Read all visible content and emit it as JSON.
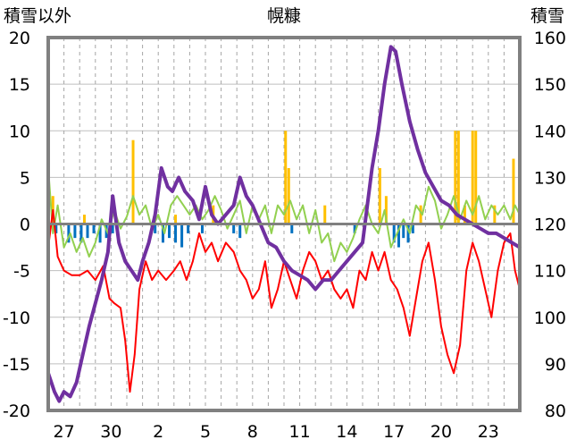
{
  "chart_data": {
    "type": "line",
    "title": "幌糠",
    "left_axis": {
      "label": "積雪以外",
      "ylim": [
        -20,
        20
      ],
      "ticks": [
        20,
        15,
        10,
        5,
        0,
        -5,
        -10,
        -15,
        -20
      ],
      "tick_labels": [
        "20",
        "15",
        "10",
        "5",
        "0",
        "-5",
        "-10",
        "-15",
        "-20"
      ]
    },
    "right_axis": {
      "label": "積雪",
      "ylim": [
        80,
        160
      ],
      "ticks": [
        160,
        150,
        140,
        130,
        120,
        110,
        100,
        90,
        80
      ],
      "tick_labels": [
        "160",
        "150",
        "140",
        "130",
        "120",
        "110",
        "100",
        "90",
        "80"
      ]
    },
    "x_axis": {
      "range_days": [
        0,
        30
      ],
      "tick_positions": [
        1,
        4,
        7,
        10,
        13,
        16,
        19,
        22,
        25,
        28
      ],
      "tick_labels": [
        "27",
        "30",
        "2",
        "5",
        "8",
        "11",
        "14",
        "17",
        "20",
        "23"
      ]
    },
    "grid": {
      "horizontal": true,
      "vertical_dashed": true
    },
    "series": [
      {
        "role": "snow_depth",
        "axis": "right",
        "color": "#7030A0",
        "points": [
          [
            0,
            88
          ],
          [
            0.4,
            84
          ],
          [
            0.7,
            82
          ],
          [
            1.0,
            84
          ],
          [
            1.4,
            83
          ],
          [
            1.8,
            86
          ],
          [
            2.2,
            92
          ],
          [
            2.6,
            98
          ],
          [
            3.0,
            103
          ],
          [
            3.4,
            108
          ],
          [
            3.8,
            114
          ],
          [
            4.1,
            126
          ],
          [
            4.5,
            116
          ],
          [
            4.9,
            112
          ],
          [
            5.3,
            110
          ],
          [
            5.7,
            108
          ],
          [
            6.0,
            112
          ],
          [
            6.4,
            116
          ],
          [
            6.8,
            122
          ],
          [
            7.2,
            132
          ],
          [
            7.6,
            128
          ],
          [
            7.9,
            127
          ],
          [
            8.3,
            130
          ],
          [
            8.7,
            127
          ],
          [
            9.2,
            125
          ],
          [
            9.6,
            121
          ],
          [
            10.0,
            128
          ],
          [
            10.4,
            122
          ],
          [
            10.8,
            120
          ],
          [
            11.3,
            122
          ],
          [
            11.8,
            124
          ],
          [
            12.2,
            130
          ],
          [
            12.6,
            126
          ],
          [
            13.0,
            124
          ],
          [
            13.5,
            120
          ],
          [
            14.0,
            116
          ],
          [
            14.5,
            115
          ],
          [
            15.0,
            112
          ],
          [
            15.5,
            110
          ],
          [
            16.0,
            109
          ],
          [
            16.5,
            108
          ],
          [
            17.0,
            106
          ],
          [
            17.5,
            108
          ],
          [
            18.0,
            108
          ],
          [
            18.5,
            110
          ],
          [
            19.0,
            112
          ],
          [
            19.5,
            114
          ],
          [
            20.0,
            116
          ],
          [
            20.6,
            132
          ],
          [
            21.0,
            140
          ],
          [
            21.4,
            150
          ],
          [
            21.8,
            158
          ],
          [
            22.1,
            157
          ],
          [
            22.5,
            150
          ],
          [
            23.0,
            142
          ],
          [
            23.5,
            136
          ],
          [
            24.0,
            131
          ],
          [
            24.5,
            128
          ],
          [
            25.0,
            125
          ],
          [
            25.5,
            124
          ],
          [
            26.0,
            122
          ],
          [
            26.5,
            121
          ],
          [
            27.0,
            120
          ],
          [
            27.5,
            119
          ],
          [
            28.0,
            118
          ],
          [
            28.5,
            118
          ],
          [
            29.0,
            117
          ],
          [
            29.5,
            116
          ],
          [
            30.0,
            115
          ]
        ]
      },
      {
        "role": "temperature_red",
        "axis": "left",
        "color": "#FF0000",
        "points": [
          [
            0,
            -2.5
          ],
          [
            0.3,
            1.5
          ],
          [
            0.6,
            -3.5
          ],
          [
            1.0,
            -5
          ],
          [
            1.5,
            -5.5
          ],
          [
            2.0,
            -5.5
          ],
          [
            2.5,
            -5
          ],
          [
            3.0,
            -6
          ],
          [
            3.5,
            -4.5
          ],
          [
            3.9,
            -8
          ],
          [
            4.2,
            -8.5
          ],
          [
            4.6,
            -9
          ],
          [
            4.9,
            -12.5
          ],
          [
            5.2,
            -18
          ],
          [
            5.5,
            -14
          ],
          [
            5.8,
            -7
          ],
          [
            6.2,
            -4
          ],
          [
            6.6,
            -6
          ],
          [
            7.0,
            -5
          ],
          [
            7.5,
            -6
          ],
          [
            8.0,
            -5
          ],
          [
            8.4,
            -4
          ],
          [
            8.8,
            -6
          ],
          [
            9.2,
            -4
          ],
          [
            9.6,
            -1
          ],
          [
            10.0,
            -3
          ],
          [
            10.4,
            -2
          ],
          [
            10.8,
            -4
          ],
          [
            11.3,
            -2
          ],
          [
            11.8,
            -3
          ],
          [
            12.2,
            -5
          ],
          [
            12.6,
            -6
          ],
          [
            13.0,
            -8
          ],
          [
            13.4,
            -7
          ],
          [
            13.8,
            -4
          ],
          [
            14.2,
            -9
          ],
          [
            14.6,
            -7
          ],
          [
            15.0,
            -4
          ],
          [
            15.4,
            -6
          ],
          [
            15.8,
            -8
          ],
          [
            16.2,
            -5
          ],
          [
            16.6,
            -3
          ],
          [
            17.0,
            -4
          ],
          [
            17.4,
            -6
          ],
          [
            17.8,
            -5
          ],
          [
            18.2,
            -7
          ],
          [
            18.6,
            -8
          ],
          [
            19.0,
            -7
          ],
          [
            19.4,
            -9
          ],
          [
            19.8,
            -5
          ],
          [
            20.2,
            -6
          ],
          [
            20.6,
            -3
          ],
          [
            21.0,
            -5
          ],
          [
            21.4,
            -3
          ],
          [
            21.8,
            -6
          ],
          [
            22.2,
            -7
          ],
          [
            22.6,
            -9
          ],
          [
            23.0,
            -12
          ],
          [
            23.4,
            -8
          ],
          [
            23.8,
            -4
          ],
          [
            24.2,
            -2
          ],
          [
            24.6,
            -6
          ],
          [
            25.0,
            -11
          ],
          [
            25.4,
            -14
          ],
          [
            25.8,
            -16
          ],
          [
            26.2,
            -13
          ],
          [
            26.6,
            -5
          ],
          [
            27.0,
            -2
          ],
          [
            27.4,
            -4
          ],
          [
            27.8,
            -7
          ],
          [
            28.2,
            -10
          ],
          [
            28.6,
            -5
          ],
          [
            29.0,
            -2
          ],
          [
            29.4,
            -1
          ],
          [
            29.7,
            -5
          ],
          [
            30.0,
            -7
          ]
        ]
      },
      {
        "role": "temperature_green",
        "axis": "left",
        "color": "#92D050",
        "points": [
          [
            0,
            6
          ],
          [
            0.3,
            -1
          ],
          [
            0.6,
            2
          ],
          [
            1.0,
            -2.5
          ],
          [
            1.4,
            -1
          ],
          [
            1.8,
            -3
          ],
          [
            2.2,
            -1.5
          ],
          [
            2.6,
            -3.5
          ],
          [
            3.0,
            -2
          ],
          [
            3.4,
            0.5
          ],
          [
            3.8,
            -1
          ],
          [
            4.2,
            1.5
          ],
          [
            4.6,
            -0.5
          ],
          [
            5.0,
            0.8
          ],
          [
            5.4,
            3
          ],
          [
            5.8,
            1
          ],
          [
            6.2,
            2
          ],
          [
            6.6,
            -0.5
          ],
          [
            7.0,
            1
          ],
          [
            7.4,
            -1
          ],
          [
            7.8,
            2
          ],
          [
            8.2,
            3
          ],
          [
            8.6,
            2
          ],
          [
            9.0,
            1
          ],
          [
            9.4,
            2
          ],
          [
            9.8,
            0.5
          ],
          [
            10.2,
            1.5
          ],
          [
            10.6,
            3
          ],
          [
            11.0,
            1.5
          ],
          [
            11.4,
            -0.5
          ],
          [
            11.8,
            1
          ],
          [
            12.2,
            2.5
          ],
          [
            12.6,
            -1
          ],
          [
            13.0,
            2
          ],
          [
            13.4,
            0.5
          ],
          [
            13.8,
            2
          ],
          [
            14.2,
            -1
          ],
          [
            14.6,
            2
          ],
          [
            15.0,
            1
          ],
          [
            15.4,
            2.5
          ],
          [
            15.8,
            0.5
          ],
          [
            16.2,
            2
          ],
          [
            16.6,
            -1
          ],
          [
            17.0,
            1.5
          ],
          [
            17.4,
            -2
          ],
          [
            17.8,
            -1
          ],
          [
            18.2,
            -4
          ],
          [
            18.6,
            -2
          ],
          [
            19.0,
            -3
          ],
          [
            19.4,
            -1.5
          ],
          [
            19.8,
            0.5
          ],
          [
            20.2,
            2
          ],
          [
            20.6,
            0
          ],
          [
            21.0,
            -1
          ],
          [
            21.4,
            1.5
          ],
          [
            21.8,
            -2.5
          ],
          [
            22.2,
            -1
          ],
          [
            22.6,
            0.5
          ],
          [
            23.0,
            -1
          ],
          [
            23.4,
            2
          ],
          [
            23.8,
            1
          ],
          [
            24.2,
            4
          ],
          [
            24.6,
            2.5
          ],
          [
            25.0,
            -0.5
          ],
          [
            25.4,
            1
          ],
          [
            25.8,
            3
          ],
          [
            26.2,
            0.5
          ],
          [
            26.6,
            2.5
          ],
          [
            27.0,
            1
          ],
          [
            27.4,
            3
          ],
          [
            27.8,
            0.5
          ],
          [
            28.2,
            2
          ],
          [
            28.6,
            1
          ],
          [
            29.0,
            2
          ],
          [
            29.4,
            0.5
          ],
          [
            29.7,
            2
          ],
          [
            30.0,
            1
          ]
        ]
      },
      {
        "role": "bars_orange",
        "axis": "left",
        "type": "bar",
        "color": "#FFC000",
        "points": [
          [
            0.3,
            3
          ],
          [
            2.3,
            1
          ],
          [
            5.4,
            9
          ],
          [
            8.1,
            1
          ],
          [
            10.5,
            2
          ],
          [
            15.1,
            10
          ],
          [
            15.3,
            6
          ],
          [
            17.6,
            2
          ],
          [
            21.1,
            6
          ],
          [
            21.5,
            3
          ],
          [
            23.7,
            2
          ],
          [
            25.9,
            10
          ],
          [
            26.1,
            10
          ],
          [
            26.5,
            2
          ],
          [
            27.0,
            10
          ],
          [
            27.2,
            10
          ],
          [
            28.4,
            2
          ],
          [
            29.6,
            7
          ]
        ]
      },
      {
        "role": "bars_blue",
        "axis": "left",
        "type": "bar",
        "color": "#0070C0",
        "points": [
          [
            0.5,
            -1
          ],
          [
            1.3,
            -2
          ],
          [
            1.7,
            -1.5
          ],
          [
            2.1,
            -2
          ],
          [
            2.5,
            -1.5
          ],
          [
            2.9,
            -1
          ],
          [
            3.3,
            -2
          ],
          [
            3.7,
            -1.5
          ],
          [
            4.1,
            -1
          ],
          [
            6.8,
            -1
          ],
          [
            7.3,
            -2
          ],
          [
            7.7,
            -1.5
          ],
          [
            8.1,
            -2
          ],
          [
            8.5,
            -2.5
          ],
          [
            8.9,
            -1
          ],
          [
            9.8,
            -1
          ],
          [
            11.8,
            -1
          ],
          [
            12.2,
            -1.5
          ],
          [
            15.5,
            -1
          ],
          [
            19.5,
            -1
          ],
          [
            22.0,
            -2
          ],
          [
            22.3,
            -2.5
          ],
          [
            22.6,
            -1.5
          ],
          [
            22.9,
            -2
          ],
          [
            23.2,
            -1
          ]
        ]
      }
    ]
  }
}
